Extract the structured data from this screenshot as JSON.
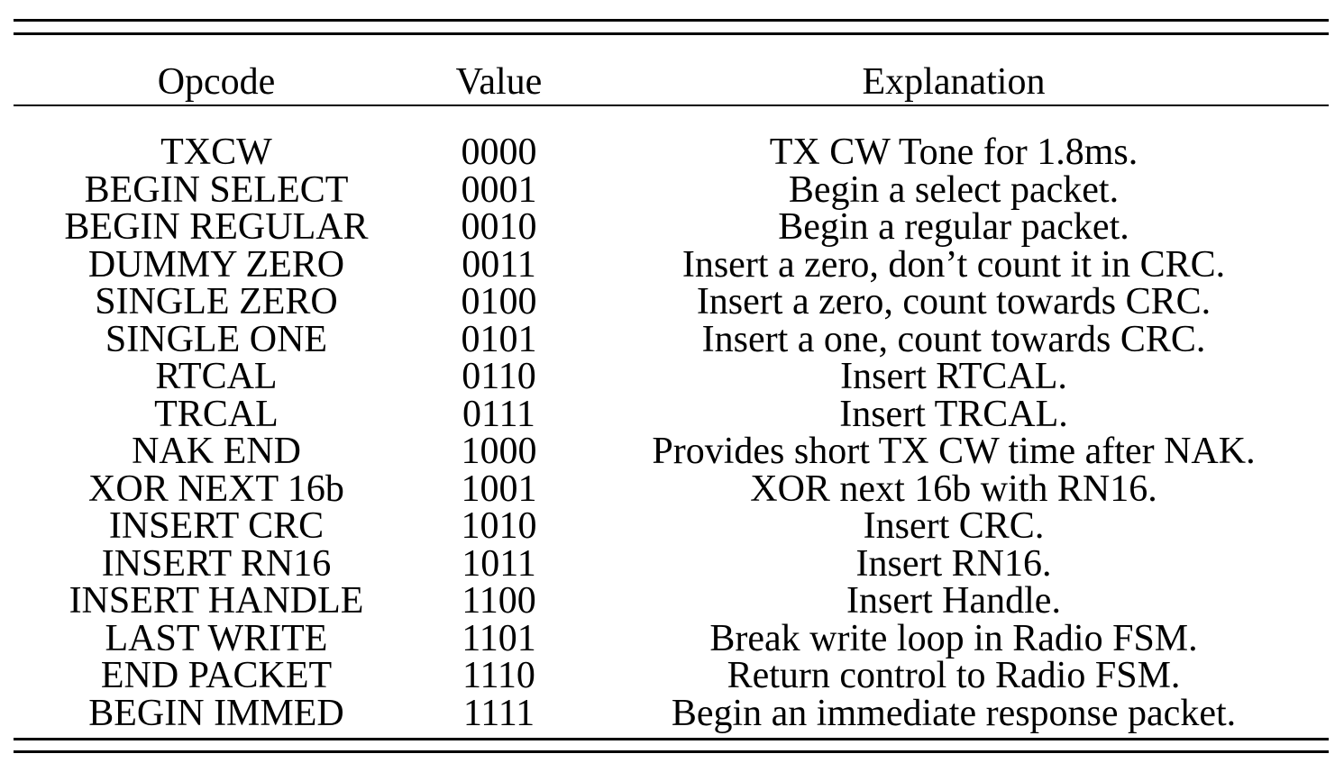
{
  "table": {
    "headers": {
      "opcode": "Opcode",
      "value": "Value",
      "explanation": "Explanation"
    },
    "rows": [
      {
        "opcode": "TXCW",
        "value": "0000",
        "explanation": "TX CW Tone for 1.8ms."
      },
      {
        "opcode": "BEGIN SELECT",
        "value": "0001",
        "explanation": "Begin a select packet."
      },
      {
        "opcode": "BEGIN REGULAR",
        "value": "0010",
        "explanation": "Begin a regular packet."
      },
      {
        "opcode": "DUMMY ZERO",
        "value": "0011",
        "explanation": "Insert a zero, don’t count it in CRC."
      },
      {
        "opcode": "SINGLE ZERO",
        "value": "0100",
        "explanation": "Insert a zero, count towards CRC."
      },
      {
        "opcode": "SINGLE ONE",
        "value": "0101",
        "explanation": "Insert a one, count towards CRC."
      },
      {
        "opcode": "RTCAL",
        "value": "0110",
        "explanation": "Insert RTCAL."
      },
      {
        "opcode": "TRCAL",
        "value": "0111",
        "explanation": "Insert TRCAL."
      },
      {
        "opcode": "NAK END",
        "value": "1000",
        "explanation": "Provides short TX CW time after NAK."
      },
      {
        "opcode": "XOR NEXT 16b",
        "value": "1001",
        "explanation": "XOR next 16b with RN16."
      },
      {
        "opcode": "INSERT CRC",
        "value": "1010",
        "explanation": "Insert CRC."
      },
      {
        "opcode": "INSERT RN16",
        "value": "1011",
        "explanation": "Insert RN16."
      },
      {
        "opcode": "INSERT HANDLE",
        "value": "1100",
        "explanation": "Insert Handle."
      },
      {
        "opcode": "LAST WRITE",
        "value": "1101",
        "explanation": "Break write loop in Radio FSM."
      },
      {
        "opcode": "END PACKET",
        "value": "1110",
        "explanation": "Return control to Radio FSM."
      },
      {
        "opcode": "BEGIN IMMED",
        "value": "1111",
        "explanation": "Begin an immediate response packet."
      }
    ]
  }
}
